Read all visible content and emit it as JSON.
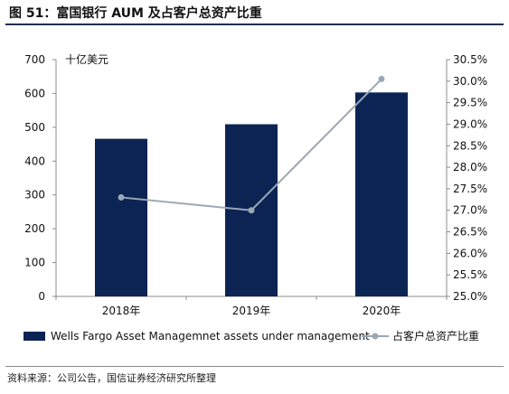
{
  "figure": {
    "title": "图 51：富国银行 AUM 及占客户总资产比重",
    "source": "资料来源：公司公告，国信证券经济研究所整理"
  },
  "chart_data": {
    "type": "bar",
    "categories": [
      "2018年",
      "2019年",
      "2020年"
    ],
    "series": [
      {
        "name": "Wells Fargo Asset Managemnet assets under management",
        "type": "bar",
        "axis": "left",
        "values": [
          466,
          509,
          603
        ],
        "color": "#0c2454"
      },
      {
        "name": "占客户总资产比重",
        "type": "line",
        "axis": "right",
        "values": [
          27.3,
          27.0,
          30.05
        ],
        "color": "#9aa7b5"
      }
    ],
    "y_left": {
      "unit_label": "十亿美元",
      "ylim": [
        0,
        700
      ],
      "ticks": [
        "0",
        "100",
        "200",
        "300",
        "400",
        "500",
        "600",
        "700"
      ]
    },
    "y_right": {
      "ylim": [
        25.0,
        30.5
      ],
      "ticks": [
        "25.0%",
        "25.5%",
        "26.0%",
        "26.5%",
        "27.0%",
        "27.5%",
        "28.0%",
        "28.5%",
        "29.0%",
        "29.5%",
        "30.0%",
        "30.5%"
      ]
    },
    "grid": false,
    "legend_position": "bottom"
  }
}
